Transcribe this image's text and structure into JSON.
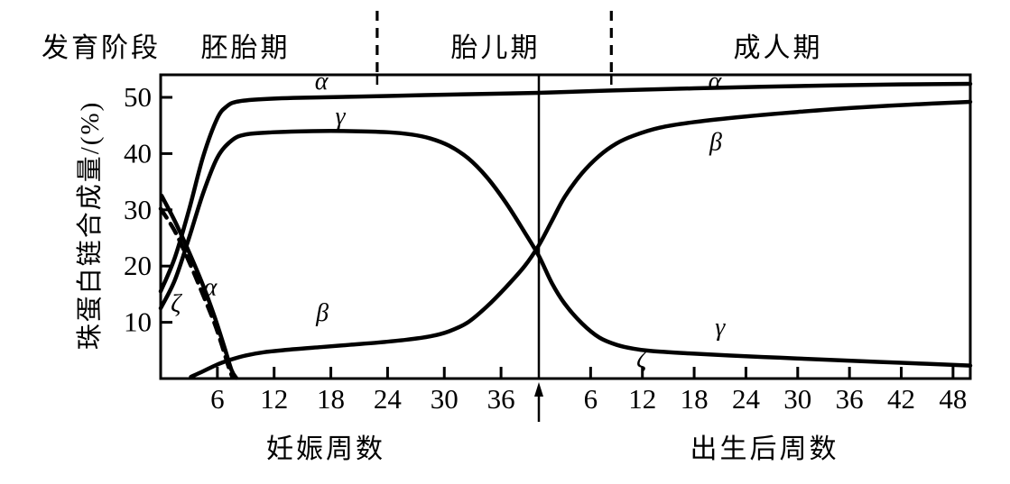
{
  "figure": {
    "stage_row": {
      "caption": "发育阶段",
      "stages": [
        "胚胎期",
        "胎儿期",
        "成人期"
      ]
    },
    "y_axis": {
      "title": "珠蛋白链合成量/(%)",
      "ticks": [
        10,
        20,
        30,
        40,
        50
      ]
    },
    "x_axis_prenatal": {
      "title": "妊娠周数",
      "ticks": [
        6,
        12,
        18,
        24,
        30,
        36
      ]
    },
    "x_axis_postnatal": {
      "title": "出生后周数",
      "ticks": [
        6,
        12,
        18,
        24,
        30,
        36,
        42,
        48
      ]
    },
    "colors": {
      "ink": "#000000",
      "background": "#ffffff"
    }
  },
  "chart_data": {
    "type": "line",
    "title": "",
    "ylabel": "珠蛋白链合成量/(%)",
    "ylim": [
      0,
      54
    ],
    "grid": false,
    "legend": "inline-curve-labels",
    "x_axes": [
      {
        "name": "prenatal",
        "label": "妊娠周数",
        "range_weeks": [
          0,
          40
        ],
        "ticks": [
          6,
          12,
          18,
          24,
          30,
          36
        ]
      },
      {
        "name": "postnatal",
        "label": "出生后周数",
        "range_weeks": [
          0,
          50
        ],
        "ticks": [
          6,
          12,
          18,
          24,
          30,
          36,
          42,
          48
        ]
      }
    ],
    "stages": [
      {
        "label": "胚胎期",
        "region": "prenatal start to ~week 23 divider"
      },
      {
        "label": "胎儿期",
        "region": "between dividers, birth marked by arrow line"
      },
      {
        "label": "成人期",
        "region": "postnatal ~week 8 divider to end"
      }
    ],
    "stage_dividers": [
      {
        "axis": "prenatal",
        "week": 22.9
      },
      {
        "axis": "postnatal",
        "week": 8.4
      }
    ],
    "birth_line": {
      "axis": "postnatal",
      "week": 0,
      "arrow_below_axis": true
    },
    "series": [
      {
        "name": "alpha",
        "label": "α",
        "style": "solid",
        "prenatal": [
          [
            0,
            15.5
          ],
          [
            1.5,
            21.5
          ],
          [
            3,
            30
          ],
          [
            4.5,
            39.5
          ],
          [
            6,
            46.3
          ],
          [
            7,
            48.4
          ],
          [
            8,
            49.2
          ],
          [
            10,
            49.6
          ],
          [
            14,
            49.9
          ],
          [
            20,
            50.1
          ],
          [
            28,
            50.4
          ],
          [
            34,
            50.6
          ],
          [
            40,
            50.8
          ]
        ],
        "postnatal": [
          [
            8,
            51.2
          ],
          [
            18,
            51.6
          ],
          [
            30,
            52.0
          ],
          [
            42,
            52.3
          ],
          [
            50,
            52.4
          ]
        ]
      },
      {
        "name": "gamma",
        "label": "γ",
        "style": "solid",
        "prenatal": [
          [
            0,
            12.5
          ],
          [
            1.5,
            17.5
          ],
          [
            3,
            25
          ],
          [
            4.5,
            33
          ],
          [
            6,
            39.3
          ],
          [
            7.5,
            42.3
          ],
          [
            9,
            43.4
          ],
          [
            12,
            43.8
          ],
          [
            16,
            44
          ],
          [
            20,
            44
          ],
          [
            24,
            43.8
          ],
          [
            26.5,
            43.4
          ],
          [
            28.5,
            42.7
          ],
          [
            30.5,
            41.4
          ],
          [
            32.5,
            39.2
          ],
          [
            34.5,
            35.8
          ],
          [
            36.5,
            31.3
          ],
          [
            38.5,
            26
          ],
          [
            40,
            21.8
          ]
        ],
        "postnatal": [
          [
            1.5,
            17
          ],
          [
            3,
            13.3
          ],
          [
            5,
            9.8
          ],
          [
            7,
            7.3
          ],
          [
            9,
            6
          ],
          [
            11,
            5.3
          ],
          [
            13,
            4.9
          ],
          [
            17,
            4.5
          ],
          [
            22,
            4.1
          ],
          [
            28,
            3.7
          ],
          [
            34,
            3.3
          ],
          [
            42,
            2.8
          ],
          [
            50,
            2.3
          ]
        ]
      },
      {
        "name": "beta",
        "label": "β",
        "style": "solid",
        "prenatal": [
          [
            3.2,
            0.3
          ],
          [
            4.5,
            1.3
          ],
          [
            6,
            2.5
          ],
          [
            7.5,
            3.4
          ],
          [
            9,
            4.1
          ],
          [
            11,
            4.7
          ],
          [
            14,
            5.2
          ],
          [
            17,
            5.6
          ],
          [
            20,
            6.0
          ],
          [
            23,
            6.4
          ],
          [
            26,
            6.9
          ],
          [
            28.5,
            7.5
          ],
          [
            30.5,
            8.4
          ],
          [
            32.5,
            10
          ],
          [
            34.5,
            12.8
          ],
          [
            36.5,
            16.2
          ],
          [
            38.5,
            20
          ],
          [
            40,
            23.7
          ]
        ],
        "postnatal": [
          [
            1.5,
            28
          ],
          [
            3,
            32.3
          ],
          [
            5,
            36.5
          ],
          [
            7,
            39.6
          ],
          [
            9,
            41.8
          ],
          [
            11,
            43.2
          ],
          [
            14,
            44.6
          ],
          [
            18,
            45.6
          ],
          [
            24,
            46.6
          ],
          [
            30,
            47.4
          ],
          [
            36,
            48.1
          ],
          [
            43,
            48.7
          ],
          [
            50,
            49.2
          ]
        ]
      },
      {
        "name": "zeta",
        "label": "ζ",
        "style": "dashed",
        "prenatal": [
          [
            0,
            30.2
          ],
          [
            1.5,
            26.2
          ],
          [
            3,
            20.8
          ],
          [
            4.5,
            14.8
          ],
          [
            5.7,
            9.8
          ],
          [
            6.5,
            5.8
          ],
          [
            7.2,
            2
          ],
          [
            7.6,
            0.2
          ]
        ],
        "postnatal": []
      },
      {
        "name": "epsilon-curve-labeled-alpha",
        "label": "α",
        "style": "solid",
        "prenatal": [
          [
            0.1,
            32.5
          ],
          [
            1.5,
            28
          ],
          [
            3,
            22.5
          ],
          [
            4.5,
            16.5
          ],
          [
            5.7,
            11
          ],
          [
            6.7,
            5.8
          ],
          [
            7.5,
            1.5
          ],
          [
            8.0,
            0.1
          ]
        ],
        "postnatal": []
      }
    ],
    "annotations": [
      {
        "text": "α",
        "axis": "prenatal",
        "week": 17,
        "pct": 52.9,
        "for": "alpha"
      },
      {
        "text": "γ",
        "axis": "prenatal",
        "week": 19,
        "pct": 46.6,
        "for": "gamma"
      },
      {
        "text": "β",
        "axis": "prenatal",
        "week": 17.1,
        "pct": 11.7,
        "for": "beta"
      },
      {
        "text": "ζ",
        "axis": "prenatal",
        "week": 1.6,
        "pct": 13.3,
        "for": "zeta"
      },
      {
        "text": "α",
        "axis": "prenatal",
        "week": 5.25,
        "pct": 16.3,
        "for": "epsilon-curve-labeled-alpha"
      },
      {
        "text": "α",
        "axis": "postnatal",
        "week": 20.4,
        "pct": 52.9,
        "for": "alpha"
      },
      {
        "text": "β",
        "axis": "postnatal",
        "week": 20.5,
        "pct": 42.1,
        "for": "beta"
      },
      {
        "text": "γ",
        "axis": "postnatal",
        "week": 21,
        "pct": 9.1,
        "for": "gamma"
      },
      {
        "text": "ζ",
        "axis": "postnatal",
        "week": 11.9,
        "pct": 3.4,
        "for": "gamma-tail-label"
      }
    ]
  }
}
